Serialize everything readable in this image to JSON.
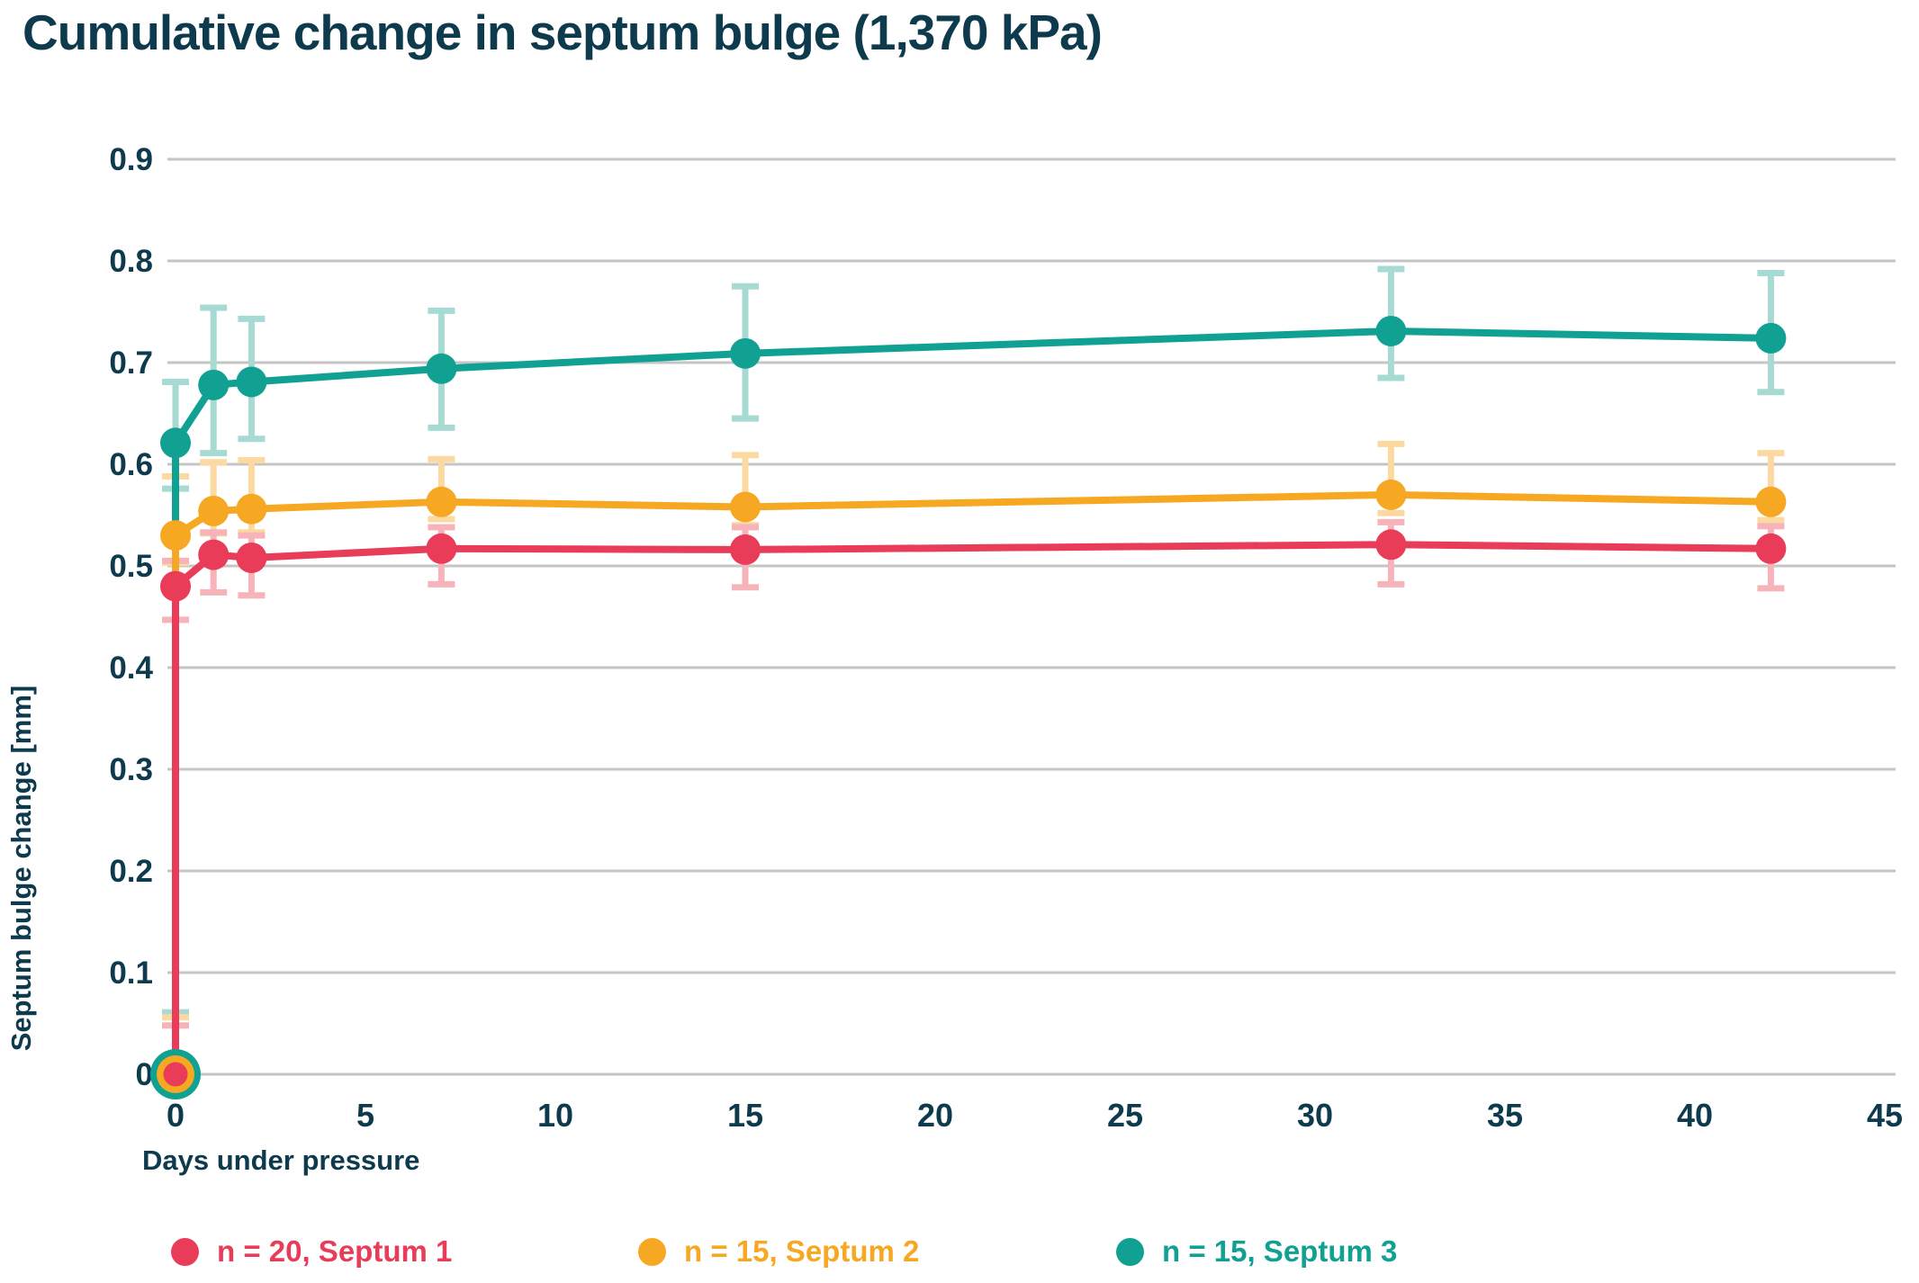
{
  "chart_data": {
    "type": "line",
    "title": "Cumulative change in septum bulge (1,370 kPa)",
    "xlabel": "Days under pressure",
    "ylabel": "Septum bulge change [mm]",
    "xlim": [
      0,
      45
    ],
    "ylim": [
      0,
      0.9
    ],
    "xticks": [
      0,
      5,
      10,
      15,
      20,
      25,
      30,
      35,
      40,
      45
    ],
    "yticks": [
      "0",
      "0.1",
      "0.2",
      "0.3",
      "0.4",
      "0.5",
      "0.6",
      "0.7",
      "0.8",
      "0.9"
    ],
    "grid": "horizontal-gridlines-only",
    "gridline_color": "#c5c5c5",
    "text_color": "#0e3a4e",
    "legend_position": "bottom",
    "x": [
      0,
      0,
      1,
      2,
      7,
      15,
      32,
      42
    ],
    "series": [
      {
        "name": "n = 20, Septum 1",
        "color": "#e83c59",
        "error_color": "#f6b4ba",
        "values": [
          0,
          0.48,
          0.511,
          0.508,
          0.517,
          0.516,
          0.521,
          0.517
        ],
        "err_lo": [
          0,
          0.447,
          0.474,
          0.471,
          0.482,
          0.479,
          0.482,
          0.478
        ],
        "err_hi": [
          0.048,
          0.505,
          0.533,
          0.53,
          0.538,
          0.538,
          0.543,
          0.539
        ]
      },
      {
        "name": "n = 15, Septum 2",
        "color": "#f7a823",
        "error_color": "#fbd9a0",
        "values": [
          0,
          0.53,
          0.554,
          0.556,
          0.563,
          0.558,
          0.57,
          0.563
        ],
        "err_lo": [
          0,
          0.503,
          0.532,
          0.533,
          0.546,
          0.54,
          0.552,
          0.545
        ],
        "err_hi": [
          0.056,
          0.588,
          0.602,
          0.604,
          0.605,
          0.609,
          0.62,
          0.611
        ]
      },
      {
        "name": "n = 15, Septum 3",
        "color": "#11a192",
        "error_color": "#a6dad2",
        "values": [
          0,
          0.621,
          0.678,
          0.681,
          0.694,
          0.709,
          0.731,
          0.724
        ],
        "err_lo": [
          0,
          0.576,
          0.611,
          0.625,
          0.636,
          0.645,
          0.685,
          0.671
        ],
        "err_hi": [
          0.061,
          0.681,
          0.754,
          0.743,
          0.751,
          0.775,
          0.792,
          0.788
        ]
      }
    ]
  }
}
